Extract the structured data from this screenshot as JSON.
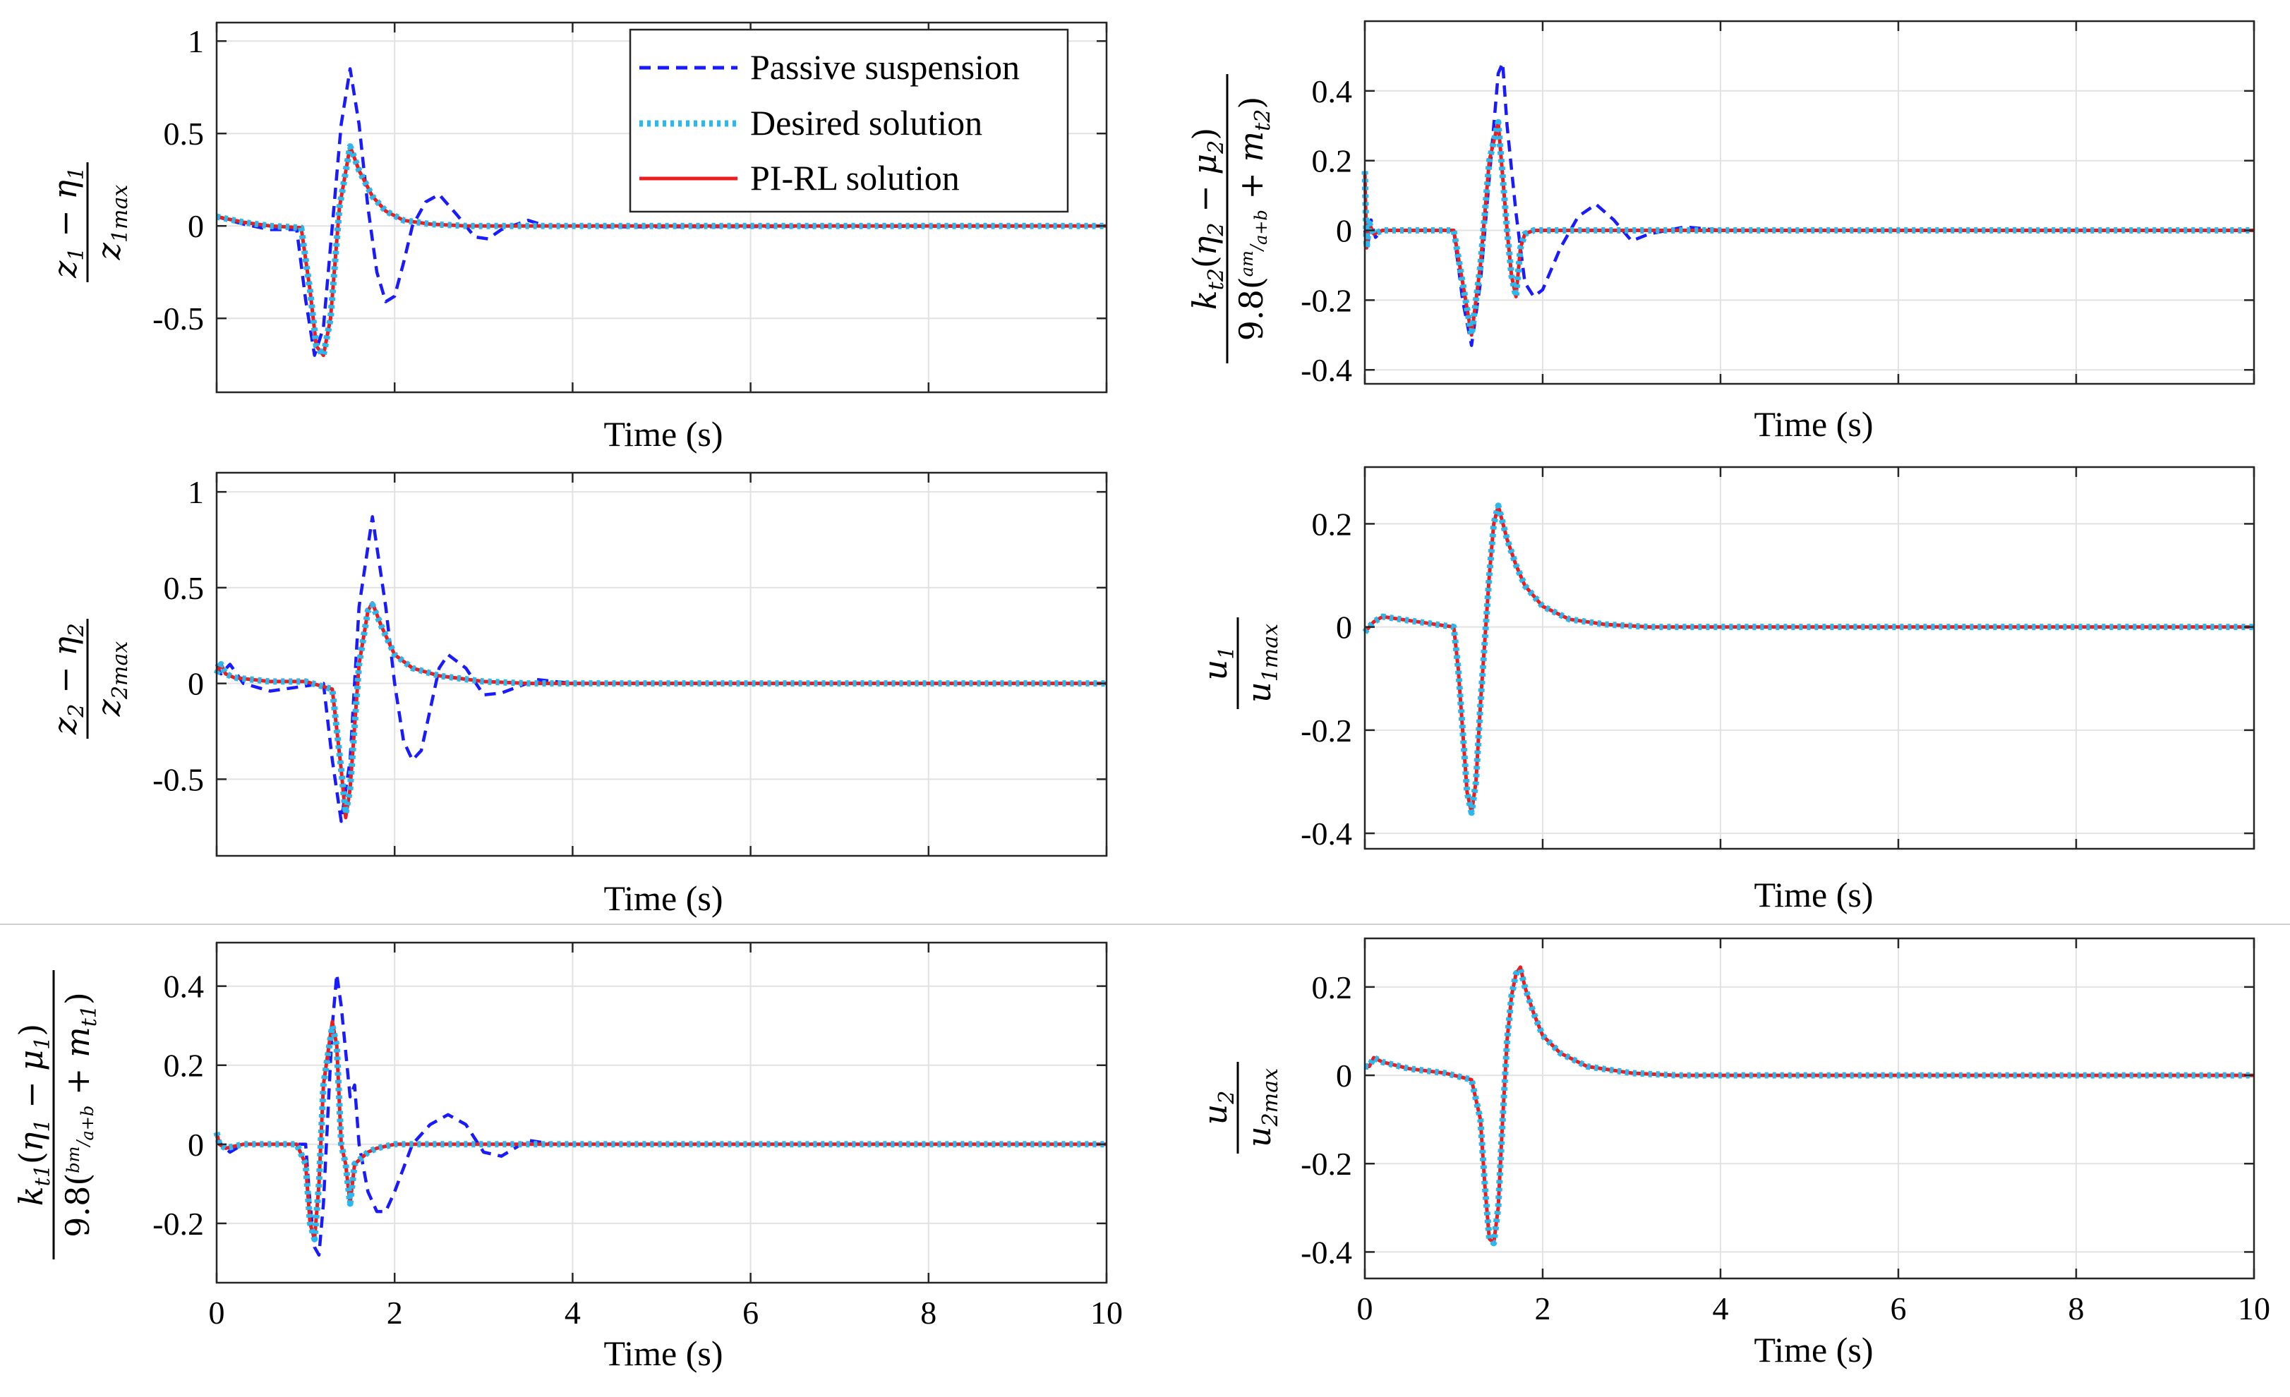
{
  "chart_data": [
    {
      "id": "p1",
      "type": "line",
      "ylabel_expr": "(z1 − η1) / z1max",
      "xlabel": "Time (s)",
      "xlim": [
        0,
        10
      ],
      "ylim": [
        -0.9,
        1.1
      ],
      "xticks": [
        0,
        2,
        4,
        6,
        8,
        10
      ],
      "xtick_labels": [],
      "yticks": [
        1,
        0.5,
        0,
        -0.5
      ],
      "ytick_labels": [
        "1",
        "0.5",
        "0",
        "-0.5"
      ],
      "series": [
        {
          "name": "Passive suspension",
          "x": [
            0,
            0.3,
            0.6,
            0.9,
            1.0,
            1.1,
            1.2,
            1.3,
            1.4,
            1.5,
            1.6,
            1.7,
            1.8,
            1.9,
            2.0,
            2.1,
            2.2,
            2.35,
            2.5,
            2.7,
            2.9,
            3.05,
            3.2,
            3.5,
            3.7,
            4.0,
            4.5,
            10
          ],
          "y": [
            0.05,
            0.01,
            -0.02,
            -0.02,
            -0.4,
            -0.7,
            -0.55,
            0.0,
            0.55,
            0.85,
            0.55,
            0.1,
            -0.25,
            -0.41,
            -0.38,
            -0.2,
            0.0,
            0.13,
            0.17,
            0.06,
            -0.06,
            -0.07,
            -0.02,
            0.03,
            0.0,
            0.0,
            -0.005,
            0
          ]
        },
        {
          "name": "Desired solution",
          "x": [
            0,
            0.3,
            0.6,
            0.95,
            1.05,
            1.12,
            1.2,
            1.28,
            1.38,
            1.5,
            1.6,
            1.75,
            1.9,
            2.1,
            2.4,
            2.8,
            3.5,
            10
          ],
          "y": [
            0.05,
            0.02,
            0.0,
            -0.01,
            -0.35,
            -0.65,
            -0.7,
            -0.5,
            0.1,
            0.43,
            0.3,
            0.16,
            0.08,
            0.03,
            0.01,
            0.0,
            0.0,
            0
          ]
        },
        {
          "name": "PI-RL solution",
          "x": [
            0,
            0.3,
            0.6,
            0.95,
            1.05,
            1.12,
            1.2,
            1.28,
            1.38,
            1.5,
            1.6,
            1.75,
            1.9,
            2.1,
            2.4,
            2.8,
            3.5,
            10
          ],
          "y": [
            0.05,
            0.02,
            0.0,
            -0.01,
            -0.35,
            -0.65,
            -0.7,
            -0.5,
            0.1,
            0.43,
            0.3,
            0.16,
            0.08,
            0.03,
            0.01,
            0.0,
            0.0,
            0
          ]
        }
      ]
    },
    {
      "id": "p2",
      "type": "line",
      "ylabel_expr": "kt2(η2 − μ2) / 9.8(am/(a+b) + mt2)",
      "xlabel": "Time (s)",
      "xlim": [
        0,
        10
      ],
      "ylim": [
        -0.44,
        0.6
      ],
      "xticks": [
        0,
        2,
        4,
        6,
        8,
        10
      ],
      "xtick_labels": [],
      "yticks": [
        0.4,
        0.2,
        0,
        -0.2,
        -0.4
      ],
      "ytick_labels": [
        "0.4",
        "0.2",
        "0",
        "-0.2",
        "-0.4"
      ],
      "series": [
        {
          "name": "Passive suspension",
          "x": [
            0,
            0.03,
            0.07,
            0.12,
            0.2,
            0.5,
            1.0,
            1.1,
            1.2,
            1.3,
            1.4,
            1.5,
            1.55,
            1.6,
            1.7,
            1.8,
            1.9,
            2.0,
            2.2,
            2.4,
            2.6,
            2.8,
            3.0,
            3.2,
            3.6,
            4.0,
            10
          ],
          "y": [
            0.0,
            -0.05,
            0.03,
            -0.02,
            0.0,
            0.0,
            0.0,
            -0.2,
            -0.33,
            -0.15,
            0.15,
            0.45,
            0.48,
            0.3,
            0.05,
            -0.15,
            -0.19,
            -0.17,
            -0.05,
            0.04,
            0.075,
            0.03,
            -0.03,
            -0.01,
            0.01,
            0.0,
            0
          ]
        },
        {
          "name": "Desired solution",
          "x": [
            0,
            0.02,
            0.05,
            0.1,
            0.2,
            0.5,
            1.0,
            1.1,
            1.2,
            1.3,
            1.4,
            1.5,
            1.6,
            1.65,
            1.7,
            1.75,
            1.8,
            1.9,
            2.1,
            10
          ],
          "y": [
            0.17,
            -0.05,
            0.02,
            -0.01,
            0.0,
            0.0,
            0.0,
            -0.15,
            -0.3,
            -0.1,
            0.2,
            0.31,
            0.0,
            -0.13,
            -0.19,
            -0.05,
            -0.01,
            0.0,
            0.0,
            0
          ]
        },
        {
          "name": "PI-RL solution",
          "x": [
            0,
            0.02,
            0.05,
            0.1,
            0.2,
            0.5,
            1.0,
            1.1,
            1.2,
            1.3,
            1.4,
            1.5,
            1.6,
            1.65,
            1.7,
            1.75,
            1.8,
            1.9,
            2.1,
            10
          ],
          "y": [
            0.17,
            -0.05,
            0.02,
            -0.01,
            0.0,
            0.0,
            0.0,
            -0.15,
            -0.3,
            -0.1,
            0.2,
            0.31,
            0.0,
            -0.13,
            -0.19,
            -0.05,
            -0.01,
            0.0,
            0.0,
            0
          ]
        }
      ]
    },
    {
      "id": "p3",
      "type": "line",
      "ylabel_expr": "(z2 − η2) / z2max",
      "xlabel": "Time (s)",
      "xlim": [
        0,
        10
      ],
      "ylim": [
        -0.9,
        1.1
      ],
      "xticks": [
        0,
        2,
        4,
        6,
        8,
        10
      ],
      "xtick_labels": [],
      "yticks": [
        1,
        0.5,
        0,
        -0.5
      ],
      "ytick_labels": [
        "1",
        "0.5",
        "0",
        "-0.5"
      ],
      "series": [
        {
          "name": "Passive suspension",
          "x": [
            0,
            0.05,
            0.15,
            0.3,
            0.6,
            1.2,
            1.3,
            1.4,
            1.5,
            1.6,
            1.75,
            1.9,
            2.0,
            2.1,
            2.2,
            2.3,
            2.5,
            2.6,
            2.8,
            3.0,
            3.2,
            3.6,
            4.0,
            10
          ],
          "y": [
            0.1,
            0.05,
            0.1,
            0.0,
            -0.04,
            0.0,
            -0.4,
            -0.72,
            -0.4,
            0.4,
            0.87,
            0.4,
            0.0,
            -0.3,
            -0.4,
            -0.35,
            0.08,
            0.15,
            0.08,
            -0.06,
            -0.05,
            0.02,
            0.0,
            0
          ]
        },
        {
          "name": "Desired solution",
          "x": [
            0,
            0.05,
            0.1,
            0.2,
            0.4,
            0.6,
            1.0,
            1.3,
            1.4,
            1.45,
            1.5,
            1.6,
            1.7,
            1.75,
            1.85,
            2.0,
            2.2,
            2.5,
            3.0,
            3.5,
            10
          ],
          "y": [
            0.05,
            0.1,
            0.05,
            0.03,
            0.02,
            0.01,
            0.01,
            -0.03,
            -0.45,
            -0.68,
            -0.55,
            0.1,
            0.38,
            0.41,
            0.3,
            0.15,
            0.08,
            0.04,
            0.01,
            0.0,
            0
          ]
        },
        {
          "name": "PI-RL solution",
          "x": [
            0,
            0.05,
            0.1,
            0.2,
            0.4,
            0.6,
            1.0,
            1.3,
            1.4,
            1.45,
            1.5,
            1.6,
            1.7,
            1.75,
            1.85,
            2.0,
            2.2,
            2.5,
            3.0,
            3.5,
            10
          ],
          "y": [
            0.05,
            0.1,
            0.05,
            0.03,
            0.02,
            0.01,
            0.01,
            -0.03,
            -0.45,
            -0.7,
            -0.55,
            0.1,
            0.38,
            0.42,
            0.3,
            0.15,
            0.08,
            0.04,
            0.01,
            0.0,
            0
          ]
        }
      ]
    },
    {
      "id": "p4",
      "type": "line",
      "ylabel_expr": "u1 / u1max",
      "xlabel": "Time (s)",
      "xlim": [
        0,
        10
      ],
      "ylim": [
        -0.43,
        0.31
      ],
      "xticks": [
        0,
        2,
        4,
        6,
        8,
        10
      ],
      "xtick_labels": [],
      "yticks": [
        0.2,
        0,
        -0.2,
        -0.4
      ],
      "ytick_labels": [
        "0.2",
        "0",
        "-0.2",
        "-0.4"
      ],
      "series": [
        {
          "name": "Desired solution",
          "x": [
            0,
            0.05,
            0.1,
            0.2,
            0.4,
            0.8,
            1.0,
            1.05,
            1.1,
            1.15,
            1.2,
            1.25,
            1.3,
            1.4,
            1.45,
            1.5,
            1.6,
            1.7,
            1.8,
            2.0,
            2.3,
            2.7,
            3.2,
            10
          ],
          "y": [
            -0.01,
            0.0,
            0.01,
            0.02,
            0.015,
            0.005,
            0.0,
            -0.08,
            -0.2,
            -0.32,
            -0.36,
            -0.3,
            -0.15,
            0.1,
            0.2,
            0.235,
            0.17,
            0.12,
            0.08,
            0.04,
            0.015,
            0.005,
            0.0,
            0
          ]
        },
        {
          "name": "PI-RL solution",
          "x": [
            0,
            0.05,
            0.1,
            0.2,
            0.4,
            0.8,
            1.0,
            1.05,
            1.1,
            1.15,
            1.2,
            1.25,
            1.3,
            1.4,
            1.45,
            1.5,
            1.6,
            1.7,
            1.8,
            2.0,
            2.3,
            2.7,
            3.2,
            10
          ],
          "y": [
            -0.01,
            0.0,
            0.01,
            0.02,
            0.015,
            0.005,
            0.0,
            -0.08,
            -0.2,
            -0.32,
            -0.36,
            -0.3,
            -0.15,
            0.1,
            0.2,
            0.235,
            0.17,
            0.12,
            0.08,
            0.04,
            0.015,
            0.005,
            0.0,
            0
          ]
        }
      ]
    },
    {
      "id": "p5",
      "type": "line",
      "ylabel_expr": "kt1(η1 − μ1) / 9.8(bm/(a+b) + mt1)",
      "xlabel": "Time (s)",
      "xlim": [
        0,
        10
      ],
      "ylim": [
        -0.35,
        0.51
      ],
      "xticks": [
        0,
        2,
        4,
        6,
        8,
        10
      ],
      "xtick_labels": [
        "0",
        "2",
        "4",
        "6",
        "8",
        "10"
      ],
      "yticks": [
        0.4,
        0.2,
        0,
        -0.2
      ],
      "ytick_labels": [
        "0.4",
        "0.2",
        "0",
        "-0.2"
      ],
      "series": [
        {
          "name": "Passive suspension",
          "x": [
            0,
            0.05,
            0.15,
            0.3,
            0.8,
            1.0,
            1.05,
            1.1,
            1.15,
            1.2,
            1.3,
            1.35,
            1.4,
            1.5,
            1.55,
            1.6,
            1.7,
            1.8,
            1.9,
            2.0,
            2.2,
            2.4,
            2.6,
            2.8,
            3.0,
            3.2,
            3.5,
            3.8,
            10
          ],
          "y": [
            0.02,
            0.0,
            -0.02,
            0.0,
            0.0,
            0.0,
            -0.15,
            -0.26,
            -0.28,
            -0.15,
            0.3,
            0.43,
            0.35,
            0.12,
            0.15,
            0.0,
            -0.12,
            -0.17,
            -0.17,
            -0.12,
            0.0,
            0.05,
            0.075,
            0.05,
            -0.02,
            -0.03,
            0.01,
            0.0,
            0
          ]
        },
        {
          "name": "Desired solution",
          "x": [
            0,
            0.03,
            0.1,
            0.3,
            0.9,
            1.0,
            1.05,
            1.1,
            1.15,
            1.2,
            1.3,
            1.35,
            1.4,
            1.45,
            1.5,
            1.55,
            1.6,
            1.7,
            1.8,
            2.0,
            2.5,
            10
          ],
          "y": [
            0.03,
            0.0,
            -0.01,
            0.0,
            0.0,
            -0.05,
            -0.2,
            -0.24,
            -0.1,
            0.15,
            0.3,
            0.25,
            0.0,
            -0.05,
            -0.15,
            -0.05,
            -0.04,
            -0.02,
            -0.01,
            0.0,
            0.0,
            0
          ]
        },
        {
          "name": "PI-RL solution",
          "x": [
            0,
            0.03,
            0.1,
            0.3,
            0.9,
            1.0,
            1.05,
            1.1,
            1.15,
            1.2,
            1.3,
            1.35,
            1.4,
            1.45,
            1.5,
            1.55,
            1.6,
            1.7,
            1.8,
            2.0,
            2.5,
            10
          ],
          "y": [
            0.03,
            0.0,
            -0.01,
            0.0,
            0.0,
            -0.05,
            -0.2,
            -0.24,
            -0.1,
            0.15,
            0.31,
            0.25,
            0.0,
            -0.05,
            -0.15,
            -0.05,
            -0.04,
            -0.02,
            -0.01,
            0.0,
            0.0,
            0
          ]
        }
      ]
    },
    {
      "id": "p6",
      "type": "line",
      "ylabel_expr": "u2 / u2max",
      "xlabel": "Time (s)",
      "xlim": [
        0,
        10
      ],
      "ylim": [
        -0.46,
        0.31
      ],
      "xticks": [
        0,
        2,
        4,
        6,
        8,
        10
      ],
      "xtick_labels": [
        "0",
        "2",
        "4",
        "6",
        "8",
        "10"
      ],
      "yticks": [
        0.2,
        0,
        -0.2,
        -0.4
      ],
      "ytick_labels": [
        "0.2",
        "0",
        "-0.2",
        "-0.4"
      ],
      "series": [
        {
          "name": "Desired solution",
          "x": [
            0,
            0.05,
            0.1,
            0.2,
            0.5,
            0.9,
            1.2,
            1.3,
            1.35,
            1.4,
            1.45,
            1.5,
            1.55,
            1.6,
            1.65,
            1.7,
            1.75,
            1.8,
            1.9,
            2.0,
            2.2,
            2.5,
            3.0,
            3.5,
            10
          ],
          "y": [
            0.02,
            0.02,
            0.04,
            0.03,
            0.015,
            0.005,
            -0.01,
            -0.1,
            -0.25,
            -0.37,
            -0.38,
            -0.3,
            -0.1,
            0.08,
            0.18,
            0.23,
            0.24,
            0.2,
            0.14,
            0.09,
            0.05,
            0.02,
            0.005,
            0.0,
            0
          ]
        },
        {
          "name": "PI-RL solution",
          "x": [
            0,
            0.05,
            0.1,
            0.2,
            0.5,
            0.9,
            1.2,
            1.3,
            1.35,
            1.4,
            1.45,
            1.5,
            1.55,
            1.6,
            1.65,
            1.7,
            1.75,
            1.8,
            1.9,
            2.0,
            2.2,
            2.5,
            3.0,
            3.5,
            10
          ],
          "y": [
            0.02,
            0.02,
            0.04,
            0.03,
            0.015,
            0.005,
            -0.01,
            -0.1,
            -0.25,
            -0.37,
            -0.38,
            -0.3,
            -0.1,
            0.08,
            0.18,
            0.23,
            0.245,
            0.2,
            0.14,
            0.09,
            0.05,
            0.02,
            0.005,
            0.0,
            0
          ]
        }
      ]
    }
  ],
  "legend": {
    "placement": "top-right of top-left panel",
    "entries": [
      "Passive suspension",
      "Desired solution",
      "PI-RL solution"
    ]
  },
  "colors": {
    "passive": "#1a1aff",
    "desired": "#2ab8f0",
    "pirl": "#ee1c1c"
  },
  "ylabels": {
    "p1": {
      "num_a": "z",
      "num_a_sub": "1",
      "minus": "−",
      "num_b": "η",
      "num_b_sub": "1",
      "den": "z",
      "den_sub": "1max"
    },
    "p3": {
      "num_a": "z",
      "num_a_sub": "2",
      "minus": "−",
      "num_b": "η",
      "num_b_sub": "2",
      "den": "z",
      "den_sub": "2max"
    },
    "p4": {
      "num": "u",
      "num_sub": "1",
      "den": "u",
      "den_sub": "1max"
    },
    "p6": {
      "num": "u",
      "num_sub": "2",
      "den": "u",
      "den_sub": "2max"
    },
    "p2": {
      "k": "k",
      "k_sub": "t2",
      "paren_open": "(",
      "eta": "η",
      "eta_sub": "2",
      "minus": " − ",
      "mu": "μ",
      "mu_sub": "2",
      "paren_close": ")",
      "coef": "9.8",
      "frac_num": "am",
      "frac_den": "a+b",
      "plus": " + ",
      "m": "m",
      "m_sub": "t2"
    },
    "p5": {
      "k": "k",
      "k_sub": "t1",
      "paren_open": "(",
      "eta": "η",
      "eta_sub": "1",
      "minus": " − ",
      "mu": "μ",
      "mu_sub": "1",
      "paren_close": ")",
      "coef": "9.8",
      "frac_num": "bm",
      "frac_den": "a+b",
      "plus": " + ",
      "m": "m",
      "m_sub": "t1"
    }
  }
}
